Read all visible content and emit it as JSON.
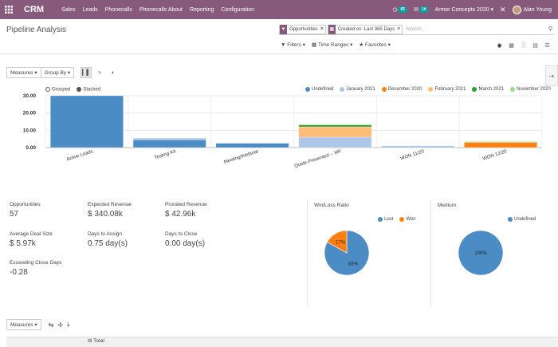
{
  "nav": {
    "brand": "CRM",
    "menu": [
      "Sales",
      "Leads",
      "Phonecalls",
      "Phonecalls About",
      "Reporting",
      "Configuration"
    ],
    "activity_count": "65",
    "message_count": "14",
    "company": "Armor Concepts 2020",
    "user": "Alan Young"
  },
  "control_panel": {
    "title": "Pipeline Analysis",
    "facets": [
      "Opportunities",
      "Created on: Last 365 Days"
    ],
    "search_placeholder": "Search...",
    "filters_label": "Filters",
    "time_ranges_label": "Time Ranges",
    "favorites_label": "Favorites"
  },
  "graph_toolbar": {
    "measures_label": "Measures",
    "group_by_label": "Group By"
  },
  "stack_mode": {
    "grouped": "Grouped",
    "stacked": "Stacked"
  },
  "colors": {
    "Undefined": "#4c8cc4",
    "January 2021": "#aec7e8",
    "December 2020": "#ff7f0e",
    "February 2021": "#ffbb78",
    "March 2021": "#2ca02c",
    "November 2020": "#98df8a",
    "Lost": "#4c8cc4",
    "Won": "#ff7f0e"
  },
  "chart_data": {
    "type": "bar",
    "stacked": true,
    "categories": [
      "Active Leads",
      "Testing Kit",
      "Meeting/Webinar",
      "Quote Presented -- MF",
      "WON 11/20",
      "WON 12/20"
    ],
    "ylim": [
      0,
      30
    ],
    "yticks": [
      "0.00",
      "10.00",
      "20.00",
      "30.00"
    ],
    "series": [
      {
        "name": "Undefined",
        "values": [
          30,
          4.5,
          2.5,
          0,
          0,
          0
        ]
      },
      {
        "name": "January 2021",
        "values": [
          0,
          1,
          0,
          6,
          1,
          0
        ]
      },
      {
        "name": "December 2020",
        "values": [
          0,
          0,
          0,
          0,
          0,
          3
        ]
      },
      {
        "name": "February 2021",
        "values": [
          0,
          0,
          0,
          6,
          0,
          0
        ]
      },
      {
        "name": "March 2021",
        "values": [
          0,
          0,
          0,
          1,
          0,
          0
        ]
      },
      {
        "name": "November 2020",
        "values": [
          0,
          0,
          0,
          0.5,
          0,
          0.5
        ]
      }
    ],
    "pies": [
      {
        "title": "Win/Loss Ratio",
        "legend": [
          "Lost",
          "Won"
        ],
        "values": [
          83,
          17
        ],
        "labels": [
          "83%",
          "17%"
        ]
      },
      {
        "title": "Medium",
        "legend": [
          "Undefined"
        ],
        "values": [
          100
        ],
        "labels": [
          "100%"
        ]
      }
    ]
  },
  "kpis": {
    "opportunities": {
      "label": "Opportunities",
      "value": "57"
    },
    "expected_revenue": {
      "label": "Expected Revenue",
      "value": "$ 340.08k"
    },
    "prorated_revenue": {
      "label": "Prorated Revenue",
      "value": "$ 42.96k"
    },
    "avg_deal_size": {
      "label": "Average Deal Size",
      "value": "$ 5.97k"
    },
    "days_to_assign": {
      "label": "Days to Assign",
      "value": "0.75 day(s)"
    },
    "days_to_close": {
      "label": "Days to Close",
      "value": "0.00 day(s)"
    },
    "exceeding_close": {
      "label": "Exceeding Close Days",
      "value": "-0.28"
    }
  },
  "pivot": {
    "measures_label": "Measures",
    "total_label": "Total"
  }
}
